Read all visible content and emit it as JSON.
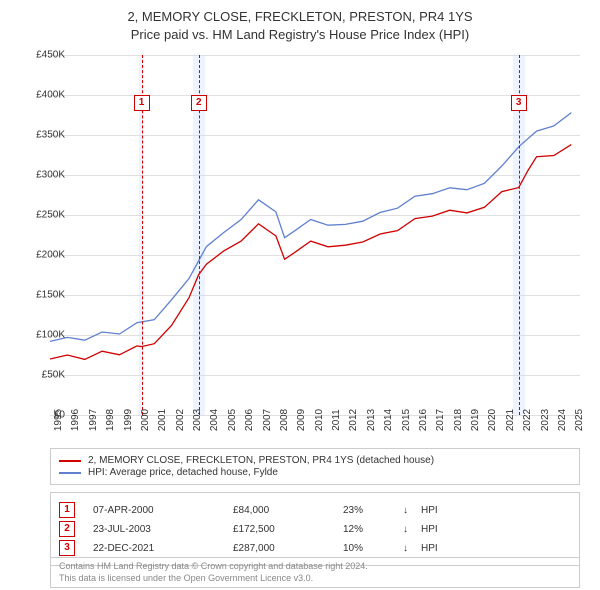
{
  "title": {
    "line1": "2, MEMORY CLOSE, FRECKLETON, PRESTON, PR4 1YS",
    "line2": "Price paid vs. HM Land Registry's House Price Index (HPI)"
  },
  "chart": {
    "type": "line",
    "background_color": "#ffffff",
    "grid_color": "#e0e0e0",
    "xlim": [
      1995,
      2025.5
    ],
    "ylim": [
      0,
      450000
    ],
    "ytick_step": 50000,
    "ytick_prefix": "£",
    "ytick_suffix_k": "K",
    "x_ticks": [
      1995,
      1996,
      1997,
      1998,
      1999,
      2000,
      2001,
      2002,
      2003,
      2004,
      2005,
      2006,
      2007,
      2008,
      2009,
      2010,
      2011,
      2012,
      2013,
      2014,
      2015,
      2016,
      2017,
      2018,
      2019,
      2020,
      2021,
      2022,
      2023,
      2024,
      2025
    ],
    "marker_band_color": "#cfe0ff",
    "marker_band_opacity": 0.35,
    "marker_line_color": "#d00000",
    "series": [
      {
        "name": "property",
        "color": "#d00000",
        "line_width": 1.3,
        "data": [
          [
            1995,
            70000
          ],
          [
            1996,
            72000
          ],
          [
            1997,
            73000
          ],
          [
            1998,
            76000
          ],
          [
            1999,
            79000
          ],
          [
            2000,
            83000
          ],
          [
            2000.27,
            84000
          ],
          [
            2001,
            92000
          ],
          [
            2002,
            110000
          ],
          [
            2003,
            148000
          ],
          [
            2003.56,
            172500
          ],
          [
            2004,
            188000
          ],
          [
            2005,
            205000
          ],
          [
            2006,
            218000
          ],
          [
            2007,
            238000
          ],
          [
            2008,
            225000
          ],
          [
            2008.5,
            195000
          ],
          [
            2009,
            201000
          ],
          [
            2010,
            218000
          ],
          [
            2011,
            210000
          ],
          [
            2012,
            212000
          ],
          [
            2013,
            217000
          ],
          [
            2014,
            225000
          ],
          [
            2015,
            232000
          ],
          [
            2016,
            244000
          ],
          [
            2017,
            250000
          ],
          [
            2018,
            255000
          ],
          [
            2019,
            253000
          ],
          [
            2020,
            260000
          ],
          [
            2021,
            278000
          ],
          [
            2021.97,
            287000
          ],
          [
            2022.5,
            308000
          ],
          [
            2023,
            320000
          ],
          [
            2024,
            328000
          ],
          [
            2025,
            338000
          ]
        ]
      },
      {
        "name": "hpi",
        "color": "#6080d0",
        "line_width": 1.3,
        "data": [
          [
            1995,
            92000
          ],
          [
            1996,
            94000
          ],
          [
            1997,
            97000
          ],
          [
            1998,
            100000
          ],
          [
            1999,
            105000
          ],
          [
            2000,
            112000
          ],
          [
            2001,
            122000
          ],
          [
            2002,
            142000
          ],
          [
            2003,
            172000
          ],
          [
            2004,
            210000
          ],
          [
            2005,
            228000
          ],
          [
            2006,
            245000
          ],
          [
            2007,
            268000
          ],
          [
            2008,
            255000
          ],
          [
            2008.5,
            222000
          ],
          [
            2009,
            228000
          ],
          [
            2010,
            245000
          ],
          [
            2011,
            237000
          ],
          [
            2012,
            238000
          ],
          [
            2013,
            243000
          ],
          [
            2014,
            252000
          ],
          [
            2015,
            260000
          ],
          [
            2016,
            272000
          ],
          [
            2017,
            278000
          ],
          [
            2018,
            283000
          ],
          [
            2019,
            282000
          ],
          [
            2020,
            290000
          ],
          [
            2021,
            310000
          ],
          [
            2022,
            338000
          ],
          [
            2023,
            352000
          ],
          [
            2024,
            365000
          ],
          [
            2025,
            378000
          ]
        ]
      }
    ],
    "markers": [
      {
        "num": "1",
        "x": 2000.27,
        "band_width_years": 0.3,
        "box_y": 40
      },
      {
        "num": "2",
        "x": 2003.56,
        "band_width_years": 0.7,
        "box_y": 40
      },
      {
        "num": "3",
        "x": 2021.97,
        "band_width_years": 0.7,
        "box_y": 40
      }
    ]
  },
  "legend": {
    "items": [
      {
        "color": "#d00000",
        "label": "2, MEMORY CLOSE, FRECKLETON, PRESTON, PR4 1YS (detached house)"
      },
      {
        "color": "#6080d0",
        "label": "HPI: Average price, detached house, Fylde"
      }
    ]
  },
  "trades": [
    {
      "num": "1",
      "date": "07-APR-2000",
      "price": "£84,000",
      "pct": "23%",
      "arrow": "↓",
      "suffix": "HPI"
    },
    {
      "num": "2",
      "date": "23-JUL-2003",
      "price": "£172,500",
      "pct": "12%",
      "arrow": "↓",
      "suffix": "HPI"
    },
    {
      "num": "3",
      "date": "22-DEC-2021",
      "price": "£287,000",
      "pct": "10%",
      "arrow": "↓",
      "suffix": "HPI"
    }
  ],
  "footer": {
    "line1": "Contains HM Land Registry data © Crown copyright and database right 2024.",
    "line2": "This data is licensed under the Open Government Licence v3.0."
  }
}
